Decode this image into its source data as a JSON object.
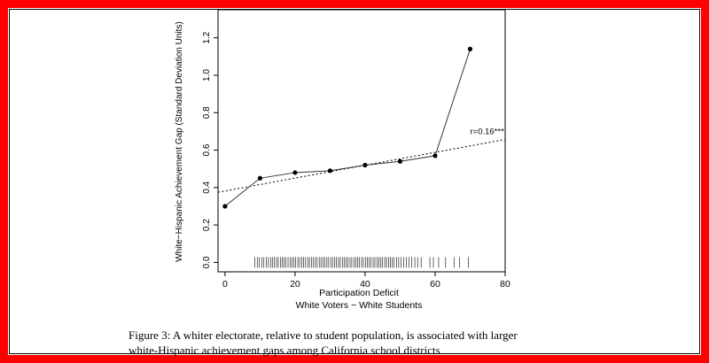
{
  "chart_data": {
    "type": "scatter",
    "xlabel": "Participation Deficit",
    "xlabel2": "White Voters − White Students",
    "ylabel": "White−Hispanic Achievement Gap (Standard Deviation Units)",
    "xlim": [
      -2,
      80
    ],
    "ylim": [
      -0.05,
      1.35
    ],
    "x_ticks": [
      0,
      20,
      40,
      60,
      80
    ],
    "x_tick_labels": [
      "0",
      "20",
      "40",
      "60",
      "80"
    ],
    "y_ticks": [
      0.0,
      0.2,
      0.4,
      0.6,
      0.8,
      1.0,
      1.2
    ],
    "y_tick_labels": [
      "0.0",
      "0.2",
      "0.4",
      "0.6",
      "0.8",
      "1.0",
      "1.2"
    ],
    "grid": false,
    "series": [
      {
        "type": "line+points",
        "x": [
          0,
          10,
          20,
          30,
          40,
          50,
          60,
          70
        ],
        "y": [
          0.3,
          0.45,
          0.48,
          0.49,
          0.52,
          0.54,
          0.57,
          1.14
        ]
      }
    ],
    "fit_line": {
      "style": "dotted",
      "x": [
        -2,
        80
      ],
      "y": [
        0.375,
        0.657
      ]
    },
    "annotation": {
      "text": "r=0.16***",
      "x": 70,
      "y": 0.685
    },
    "rug": [
      8.5,
      9.2,
      9.8,
      10.5,
      11.1,
      11.8,
      12.4,
      13.0,
      13.5,
      14.1,
      14.7,
      15.2,
      15.8,
      16.3,
      16.9,
      17.4,
      18.0,
      18.6,
      19.1,
      19.7,
      20.2,
      20.8,
      21.3,
      21.9,
      22.4,
      23.0,
      23.6,
      24.1,
      24.7,
      25.2,
      25.8,
      26.3,
      26.9,
      27.4,
      28.0,
      28.5,
      29.1,
      29.6,
      30.2,
      30.7,
      31.3,
      31.8,
      32.4,
      32.9,
      33.5,
      34.0,
      34.6,
      35.1,
      35.7,
      36.2,
      36.8,
      37.3,
      37.9,
      38.4,
      39.0,
      39.5,
      40.1,
      40.6,
      41.2,
      41.7,
      42.3,
      42.8,
      43.4,
      43.9,
      44.5,
      45.0,
      45.6,
      46.1,
      46.7,
      47.2,
      47.8,
      48.3,
      49.0,
      49.6,
      50.3,
      51.0,
      51.8,
      52.5,
      53.3,
      54.2,
      55.0,
      56.0,
      58.5,
      59.5,
      61.0,
      63.0,
      65.5,
      67.0,
      69.5
    ]
  },
  "caption": {
    "line1": "Figure 3:  A whiter electorate, relative to student population, is associated with larger",
    "line2": "white-Hispanic achievement gaps among California school districts"
  }
}
